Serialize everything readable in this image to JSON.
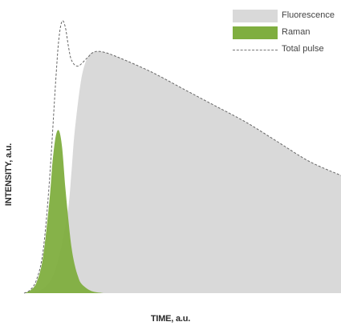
{
  "chart_data": {
    "type": "area",
    "title": "",
    "xlabel": "TIME, a.u.",
    "ylabel": "INTENSITY, a.u.",
    "xlim": [
      0,
      100
    ],
    "ylim": [
      0,
      100
    ],
    "grid": false,
    "legend_position": "top-right",
    "series": [
      {
        "name": "Fluorescence",
        "style": "filled-area",
        "color": "#d9d9d9",
        "x": [
          0,
          5,
          8,
          10,
          12,
          14,
          15,
          16,
          18,
          20,
          22,
          25,
          30,
          40,
          50,
          60,
          70,
          80,
          90,
          100
        ],
        "y": [
          0,
          1,
          4,
          9,
          18,
          31,
          44,
          58,
          76,
          84,
          86,
          86,
          84,
          79,
          73,
          67,
          61,
          54,
          47,
          42
        ]
      },
      {
        "name": "Raman",
        "style": "filled-area",
        "color": "#7fae3f",
        "x": [
          0,
          2,
          4,
          6,
          8,
          9,
          10,
          11,
          12,
          13,
          14,
          15,
          16,
          17,
          18,
          20,
          22,
          25
        ],
        "y": [
          0,
          1,
          4,
          13,
          33,
          47,
          56,
          58,
          52,
          38,
          26,
          16,
          10,
          6,
          3.5,
          1.5,
          0.5,
          0
        ]
      },
      {
        "name": "Total pulse",
        "style": "dashed-line",
        "color": "#666666",
        "x": [
          0,
          2,
          4,
          6,
          8,
          10,
          11,
          12,
          13,
          14,
          15,
          17,
          20,
          22,
          25,
          30,
          40,
          50,
          60,
          70,
          80,
          90,
          100
        ],
        "y": [
          0,
          1.2,
          5,
          15,
          40,
          76,
          91,
          97,
          95,
          88,
          83,
          81,
          84,
          86,
          86,
          84,
          79,
          73,
          67,
          61,
          54,
          47,
          42
        ]
      }
    ]
  }
}
